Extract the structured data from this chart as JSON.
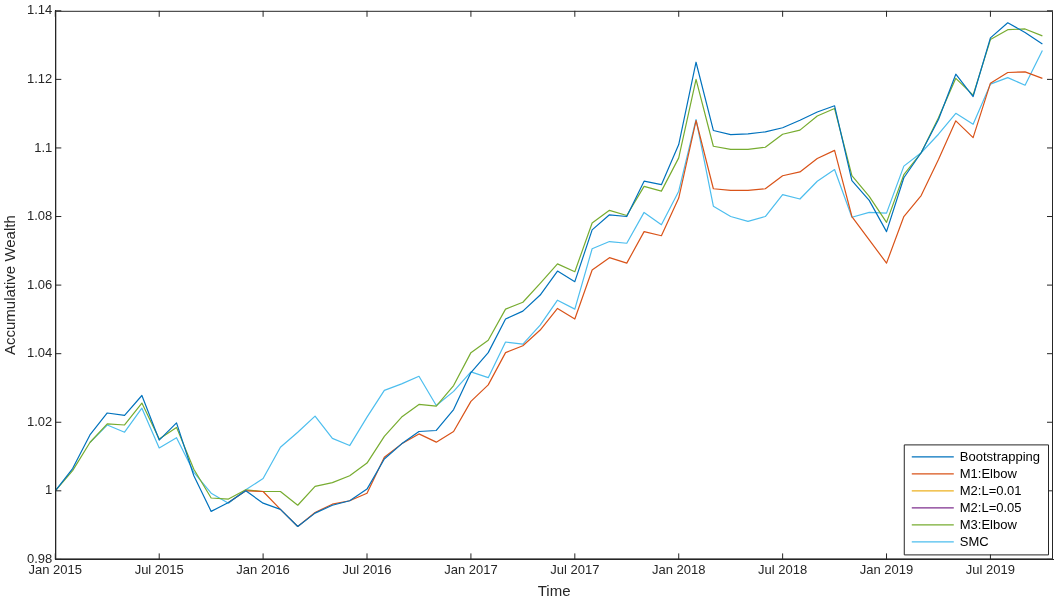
{
  "chart_data": {
    "type": "line",
    "xlabel": "Time",
    "ylabel": "Accumulative Wealth",
    "x": [
      "2015-01",
      "2015-02",
      "2015-03",
      "2015-04",
      "2015-05",
      "2015-06",
      "2015-07",
      "2015-08",
      "2015-09",
      "2015-10",
      "2015-11",
      "2015-12",
      "2016-01",
      "2016-02",
      "2016-03",
      "2016-04",
      "2016-05",
      "2016-06",
      "2016-07",
      "2016-08",
      "2016-09",
      "2016-10",
      "2016-11",
      "2016-12",
      "2017-01",
      "2017-02",
      "2017-03",
      "2017-04",
      "2017-05",
      "2017-06",
      "2017-07",
      "2017-08",
      "2017-09",
      "2017-10",
      "2017-11",
      "2017-12",
      "2018-01",
      "2018-02",
      "2018-03",
      "2018-04",
      "2018-05",
      "2018-06",
      "2018-07",
      "2018-08",
      "2018-09",
      "2018-10",
      "2018-11",
      "2018-12",
      "2019-01",
      "2019-02",
      "2019-03",
      "2019-04",
      "2019-05",
      "2019-06",
      "2019-07",
      "2019-08",
      "2019-09",
      "2019-10"
    ],
    "series": [
      {
        "name": "Bootstrapping",
        "color": "#0072bd",
        "values": [
          1.0,
          1.0065,
          1.0163,
          1.0227,
          1.022,
          1.0278,
          1.0148,
          1.0198,
          1.0044,
          0.994,
          0.9966,
          1.0,
          0.9964,
          0.9946,
          0.9896,
          0.9935,
          0.9958,
          0.9971,
          1.0005,
          1.0093,
          1.0137,
          1.0173,
          1.0176,
          1.0237,
          1.0345,
          1.0403,
          1.0501,
          1.0524,
          1.0571,
          1.0641,
          1.061,
          1.0761,
          1.0805,
          1.08,
          1.0903,
          1.0893,
          1.101,
          1.125,
          1.1051,
          1.1039,
          1.1041,
          1.1047,
          1.1059,
          1.1081,
          1.1105,
          1.1123,
          1.0905,
          1.0847,
          1.0756,
          1.0913,
          1.0986,
          1.1083,
          1.1215,
          1.115,
          1.1321,
          1.1365,
          1.1337,
          1.1303
        ]
      },
      {
        "name": "M1:Elbow",
        "color": "#d95319",
        "values": [
          null,
          null,
          null,
          null,
          null,
          null,
          null,
          null,
          null,
          null,
          0.9966,
          1.0,
          0.9998,
          0.9946,
          0.9896,
          0.9937,
          0.9961,
          0.9971,
          0.9993,
          1.0098,
          1.0137,
          1.0166,
          1.0142,
          1.0173,
          1.0261,
          1.0309,
          1.0403,
          1.0423,
          1.0469,
          1.0532,
          1.0501,
          1.0644,
          1.068,
          1.0664,
          1.0756,
          1.0744,
          1.0854,
          1.108,
          1.0881,
          1.0876,
          1.0876,
          1.0881,
          1.0919,
          1.093,
          1.0969,
          1.0993,
          1.08,
          1.0732,
          1.0664,
          1.08,
          1.0861,
          1.0966,
          1.1079,
          1.103,
          1.1189,
          1.122,
          1.1222,
          1.1203
        ]
      },
      {
        "name": "M2:L=0.01",
        "color": "#edb120",
        "values": [
          null,
          null,
          null,
          null,
          null,
          null,
          null,
          null,
          null,
          null,
          null,
          null,
          null,
          null,
          null,
          null,
          null,
          null,
          null,
          null,
          null,
          null,
          null,
          null,
          null,
          null,
          null,
          null,
          null,
          null,
          null,
          null,
          null,
          null,
          null,
          null,
          null,
          null,
          null,
          null,
          null,
          null,
          null,
          null,
          null,
          null,
          null,
          null,
          null,
          null,
          null,
          null,
          null,
          null,
          null,
          null,
          null,
          null
        ]
      },
      {
        "name": "M2:L=0.05",
        "color": "#7e2f8e",
        "values": [
          null,
          null,
          null,
          null,
          null,
          null,
          null,
          null,
          null,
          null,
          null,
          null,
          null,
          null,
          null,
          null,
          null,
          null,
          null,
          null,
          null,
          null,
          null,
          null,
          null,
          null,
          null,
          null,
          null,
          null,
          null,
          null,
          null,
          null,
          null,
          null,
          null,
          null,
          null,
          null,
          null,
          null,
          null,
          null,
          null,
          null,
          null,
          null,
          null,
          null,
          null,
          null,
          null,
          null,
          null,
          null,
          null,
          null
        ]
      },
      {
        "name": "M3:Elbow",
        "color": "#77ac30",
        "values": [
          1.0,
          1.0059,
          1.0141,
          1.0195,
          1.0192,
          1.0256,
          1.0151,
          1.0185,
          1.0063,
          0.9979,
          0.9976,
          1.0003,
          0.9998,
          0.9998,
          0.9958,
          1.0013,
          1.0024,
          1.0044,
          1.0081,
          1.0159,
          1.0215,
          1.0252,
          1.0247,
          1.0307,
          1.0403,
          1.0439,
          1.053,
          1.055,
          1.0605,
          1.0662,
          1.0639,
          1.0781,
          1.0818,
          1.0803,
          1.0888,
          1.0874,
          1.0971,
          1.12,
          1.1005,
          1.0996,
          1.0996,
          1.1002,
          1.104,
          1.1052,
          1.1093,
          1.1115,
          1.0919,
          1.0859,
          1.0783,
          1.0922,
          1.0986,
          1.1088,
          1.1203,
          1.1154,
          1.1316,
          1.1345,
          1.1347,
          1.1327
        ]
      },
      {
        "name": "SMC",
        "color": "#4dbeee",
        "values": [
          null,
          null,
          1.0141,
          1.0192,
          1.0171,
          1.0241,
          1.0125,
          1.0155,
          1.0054,
          0.9993,
          0.9964,
          1.0003,
          1.0036,
          1.0127,
          1.0171,
          1.0218,
          1.0153,
          1.0132,
          1.0215,
          1.0293,
          1.0312,
          1.0334,
          1.0249,
          1.029,
          1.0347,
          1.033,
          1.0434,
          1.0428,
          1.0483,
          1.0556,
          1.053,
          1.0706,
          1.0727,
          1.0722,
          1.0812,
          1.0776,
          1.0874,
          1.1083,
          1.083,
          1.08,
          1.0786,
          1.08,
          1.0864,
          1.0851,
          1.0903,
          1.0937,
          1.0798,
          1.0812,
          1.081,
          1.0947,
          1.0986,
          1.104,
          1.1101,
          1.1069,
          1.1186,
          1.1205,
          1.1183,
          1.1284
        ]
      }
    ],
    "xlim": [
      "2015-01-01",
      "2019-10-20"
    ],
    "xticks": [
      {
        "value": "2015-01",
        "label": "Jan 2015"
      },
      {
        "value": "2015-07",
        "label": "Jul 2015"
      },
      {
        "value": "2016-01",
        "label": "Jan 2016"
      },
      {
        "value": "2016-07",
        "label": "Jul 2016"
      },
      {
        "value": "2017-01",
        "label": "Jan 2017"
      },
      {
        "value": "2017-07",
        "label": "Jul 2017"
      },
      {
        "value": "2018-01",
        "label": "Jan 2018"
      },
      {
        "value": "2018-07",
        "label": "Jul 2018"
      },
      {
        "value": "2019-01",
        "label": "Jan 2019"
      },
      {
        "value": "2019-07",
        "label": "Jul 2019"
      }
    ],
    "ylim": [
      0.98,
      1.14
    ],
    "yticks": [
      0.98,
      1,
      1.02,
      1.04,
      1.06,
      1.08,
      {
        "value": 1.1,
        "label": "1.1"
      },
      1.12,
      1.14
    ],
    "legend": "bottom right",
    "grid": false,
    "marker": "none",
    "line_style": "solid"
  }
}
